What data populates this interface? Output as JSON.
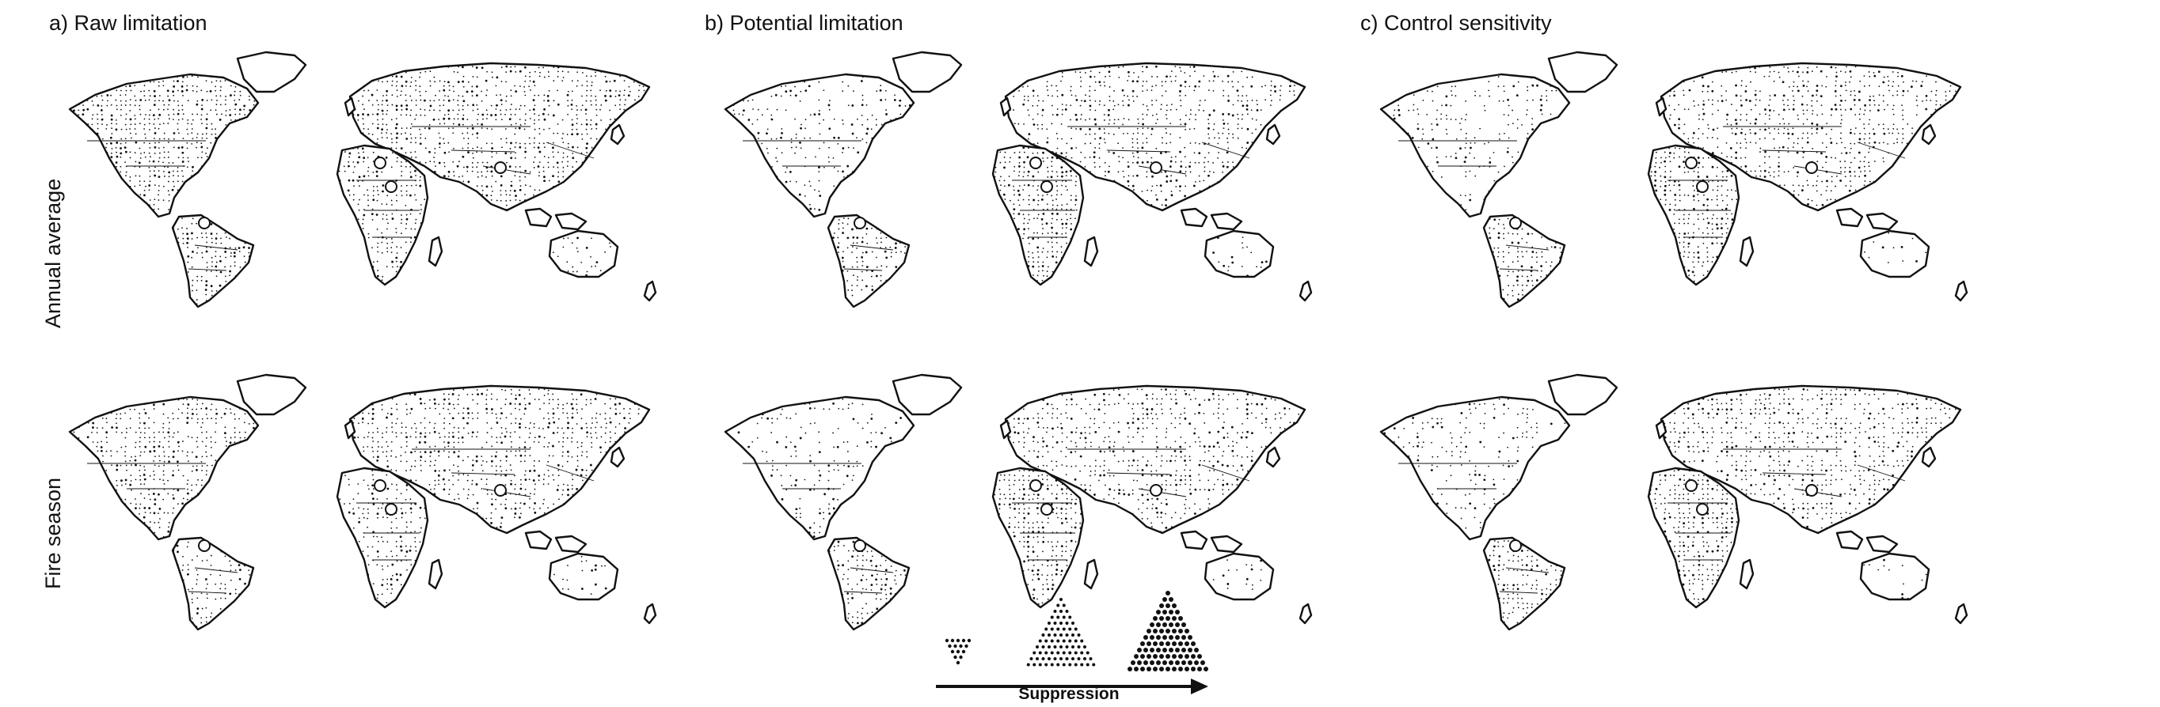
{
  "panels": [
    {
      "id": "a",
      "title": "a) Raw limitation"
    },
    {
      "id": "b",
      "title": "b) Potential limitation"
    },
    {
      "id": "c",
      "title": "c) Control sensitivity"
    }
  ],
  "rows": [
    {
      "id": "annual",
      "label": "Annual average"
    },
    {
      "id": "fire",
      "label": "Fire season"
    }
  ],
  "legend": {
    "axis_label": "Suppression",
    "levels": [
      "low",
      "medium",
      "high"
    ],
    "arrow_direction": "right"
  },
  "colors": {
    "land_outline": "#111111",
    "stipple": "#111111",
    "background": "#ffffff"
  }
}
